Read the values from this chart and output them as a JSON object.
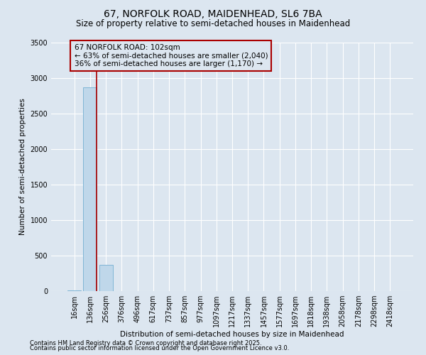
{
  "title": "67, NORFOLK ROAD, MAIDENHEAD, SL6 7BA",
  "subtitle": "Size of property relative to semi-detached houses in Maidenhead",
  "xlabel": "Distribution of semi-detached houses by size in Maidenhead",
  "ylabel": "Number of semi-detached properties",
  "footnote1": "Contains HM Land Registry data © Crown copyright and database right 2025.",
  "footnote2": "Contains public sector information licensed under the Open Government Licence v3.0.",
  "annotation_title": "67 NORFOLK ROAD: 102sqm",
  "annotation_line1": "← 63% of semi-detached houses are smaller (2,040)",
  "annotation_line2": "36% of semi-detached houses are larger (1,170) →",
  "bar_labels": [
    "16sqm",
    "136sqm",
    "256sqm",
    "376sqm",
    "496sqm",
    "617sqm",
    "737sqm",
    "857sqm",
    "977sqm",
    "1097sqm",
    "1217sqm",
    "1337sqm",
    "1457sqm",
    "1577sqm",
    "1697sqm",
    "1818sqm",
    "1938sqm",
    "2058sqm",
    "2178sqm",
    "2298sqm",
    "2418sqm"
  ],
  "bar_values": [
    10,
    2870,
    370,
    5,
    2,
    1,
    0,
    0,
    0,
    0,
    0,
    0,
    0,
    0,
    0,
    0,
    0,
    0,
    0,
    0,
    0
  ],
  "bar_color": "#bfd7ea",
  "bar_edge_color": "#7fb5d5",
  "property_line_x": 1.42,
  "property_line_color": "#aa0000",
  "annotation_box_color": "#aa0000",
  "background_color": "#dce6f0",
  "grid_color": "#ffffff",
  "ylim": [
    0,
    3500
  ],
  "yticks": [
    0,
    500,
    1000,
    1500,
    2000,
    2500,
    3000,
    3500
  ],
  "title_fontsize": 10,
  "subtitle_fontsize": 8.5,
  "annotation_fontsize": 7.5,
  "axis_label_fontsize": 7.5,
  "tick_fontsize": 7,
  "footnote_fontsize": 6
}
